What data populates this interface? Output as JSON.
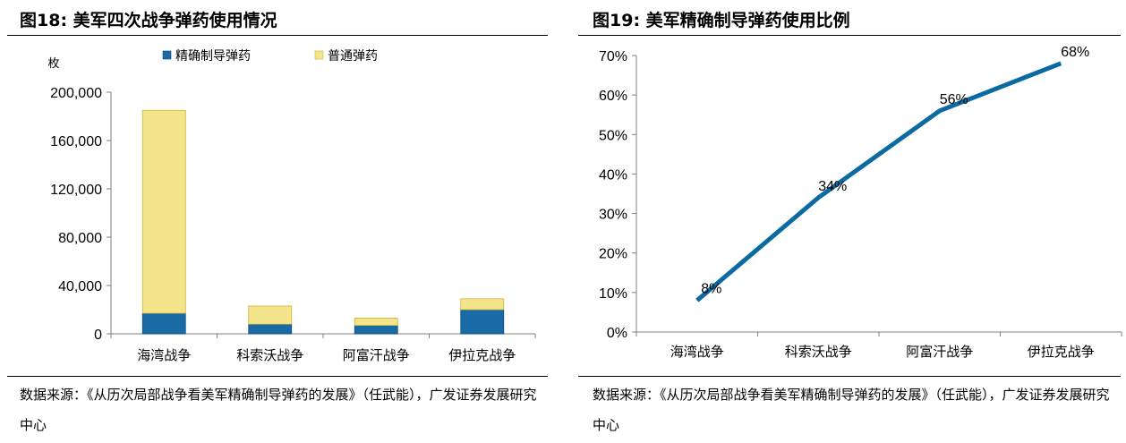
{
  "colors": {
    "precision": "#1a6aa6",
    "precision_dark": "#0b4f83",
    "conventional": "#f5e58a",
    "conventional_edge": "#c9b33a",
    "line": "#0a6aa1",
    "axis": "#7f7f7f"
  },
  "charts": [
    {
      "figure_title": "图18:  美军四次战争弹药使用情况",
      "source": "数据来源：《从历次局部战争看美军精确制导弹药的发展》（任武能），广发证券发展研究中心",
      "ylabel": "枚",
      "y_ticks": [
        "200,000",
        "160,000",
        "120,000",
        "80,000",
        "40,000",
        "0"
      ]
    },
    {
      "figure_title": "图19:  美军精确制导弹药使用比例",
      "source": "数据来源：《从历次局部战争看美军精确制导弹药的发展》（任武能），广发证券发展研究中心",
      "y_ticks": [
        "70%",
        "60%",
        "50%",
        "40%",
        "30%",
        "20%",
        "10%",
        "0%"
      ]
    }
  ],
  "chart_data": [
    {
      "type": "bar",
      "stacked": true,
      "title": "图18:  美军四次战争弹药使用情况",
      "ylabel": "枚",
      "ylim": [
        0,
        200000
      ],
      "legend_position": "top",
      "categories": [
        "海湾战争",
        "科索沃战争",
        "阿富汗战争",
        "伊拉克战争"
      ],
      "series": [
        {
          "name": "精确制导弹药",
          "values": [
            17000,
            8000,
            7000,
            20000
          ]
        },
        {
          "name": "普通弹药",
          "values": [
            168000,
            15000,
            6000,
            9000
          ]
        }
      ]
    },
    {
      "type": "line",
      "title": "图19:  美军精确制导弹药使用比例",
      "ylim": [
        0,
        0.7
      ],
      "categories": [
        "海湾战争",
        "科索沃战争",
        "阿富汗战争",
        "伊拉克战争"
      ],
      "values": [
        0.08,
        0.34,
        0.56,
        0.68
      ],
      "data_labels": [
        "8%",
        "34%",
        "56%",
        "68%"
      ]
    }
  ]
}
